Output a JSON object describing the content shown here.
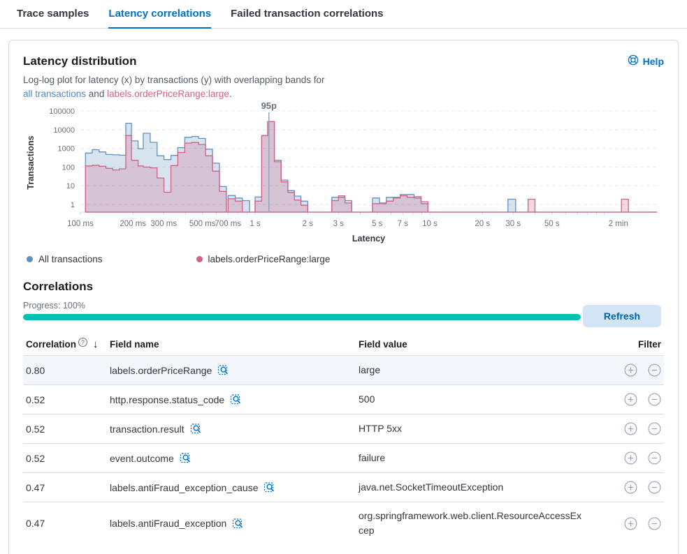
{
  "colors": {
    "accent_blue": "#0071c2",
    "series_all": "#6092C0",
    "series_large": "#D36086",
    "progress_teal": "#00BFB3",
    "border": "#d3dae6",
    "row_highlight": "#f3f6fb",
    "muted_text": "#69707d"
  },
  "tabs": [
    {
      "label": "Trace samples",
      "active": false
    },
    {
      "label": "Latency correlations",
      "active": true
    },
    {
      "label": "Failed transaction correlations",
      "active": false
    }
  ],
  "latency_distribution": {
    "title": "Latency distribution",
    "help_label": "Help",
    "description": "Log-log plot for latency (x) by transactions (y) with overlapping bands for",
    "link_all_transactions": "all transactions",
    "description_and": " and ",
    "link_field": "labels.orderPriceRange:large",
    "description_period": "."
  },
  "chart_data": {
    "type": "area",
    "subtype": "log-log overlapping band histogram",
    "title": "Latency distribution",
    "xlabel": "Latency",
    "ylabel": "Transactions",
    "x_scale": "log",
    "y_scale": "log",
    "x_ticks": [
      "100 ms",
      "200 ms",
      "300 ms",
      "500 ms",
      "700 ms",
      "1 s",
      "2 s",
      "3 s",
      "5 s",
      "7 s",
      "10 s",
      "20 s",
      "30 s",
      "50 s",
      "2 min"
    ],
    "x_tick_ms": [
      100,
      200,
      300,
      500,
      700,
      1000,
      2000,
      3000,
      5000,
      7000,
      10000,
      20000,
      30000,
      50000,
      120000
    ],
    "y_ticks": [
      "1",
      "10",
      "100",
      "1000",
      "10000",
      "100000"
    ],
    "y_tick_values": [
      1,
      10,
      100,
      1000,
      10000,
      100000
    ],
    "annotation": {
      "label": "95p",
      "at_ms": 1200
    },
    "legend_position": "bottom",
    "series": [
      {
        "name": "All transactions",
        "color": "#6092C0",
        "bin_value_index": 2
      },
      {
        "name": "labels.orderPriceRange:large",
        "color": "#D36086",
        "bin_value_index": 3
      }
    ],
    "bins_ms_and_counts": [
      [
        107,
        117,
        560,
        115
      ],
      [
        117,
        128,
        850,
        125
      ],
      [
        128,
        140,
        640,
        110
      ],
      [
        140,
        153,
        470,
        85
      ],
      [
        153,
        167,
        450,
        70
      ],
      [
        167,
        182,
        430,
        80
      ],
      [
        182,
        196,
        22000,
        4800
      ],
      [
        196,
        214,
        2500,
        230
      ],
      [
        214,
        229,
        950,
        115
      ],
      [
        229,
        251,
        6400,
        100
      ],
      [
        251,
        275,
        2100,
        90
      ],
      [
        275,
        301,
        400,
        26
      ],
      [
        301,
        330,
        250,
        4.5
      ],
      [
        330,
        361,
        420,
        120
      ],
      [
        361,
        396,
        1100,
        600
      ],
      [
        396,
        434,
        3900,
        1900
      ],
      [
        434,
        475,
        4300,
        2050
      ],
      [
        475,
        520,
        3400,
        1600
      ],
      [
        520,
        570,
        900,
        400
      ],
      [
        570,
        625,
        160,
        60
      ],
      [
        625,
        685,
        9,
        5
      ],
      [
        700,
        770,
        3,
        2
      ],
      [
        770,
        845,
        2.2,
        1.5
      ],
      [
        845,
        930,
        1.6,
        0
      ],
      [
        1000,
        1090,
        2.5,
        1.5
      ],
      [
        1090,
        1180,
        4800,
        4800
      ],
      [
        1180,
        1290,
        27000,
        27000
      ],
      [
        1290,
        1410,
        230,
        190
      ],
      [
        1410,
        1540,
        20,
        16
      ],
      [
        1540,
        1680,
        5.5,
        4.4
      ],
      [
        1680,
        1830,
        2.8,
        1.7
      ],
      [
        1830,
        2000,
        1.5,
        0.9
      ],
      [
        2750,
        3000,
        2.4,
        1.6
      ],
      [
        3000,
        3270,
        2.4,
        2.9
      ],
      [
        3270,
        3570,
        1.2,
        1.6
      ],
      [
        4700,
        5150,
        2.2,
        1.1
      ],
      [
        5150,
        5640,
        1.2,
        1.1
      ],
      [
        5640,
        6180,
        2.4,
        1.5
      ],
      [
        6180,
        6770,
        2.4,
        2.2
      ],
      [
        6770,
        7420,
        3.4,
        2.9
      ],
      [
        7420,
        8130,
        3.4,
        2.4
      ],
      [
        8130,
        8910,
        2.2,
        2.6
      ],
      [
        8910,
        9760,
        1.1,
        1.4
      ],
      [
        28000,
        31000,
        1.9,
        0
      ],
      [
        36500,
        40000,
        0,
        1.9
      ],
      [
        125000,
        137000,
        0,
        1.9
      ]
    ]
  },
  "correlations": {
    "title": "Correlations",
    "progress_label": "Progress: 100%",
    "progress_percent": 100,
    "refresh_label": "Refresh",
    "columns": [
      "Correlation",
      "Field name",
      "Field value",
      "Filter"
    ],
    "rows": [
      {
        "correlation": "0.80",
        "field_name": "labels.orderPriceRange",
        "field_value": "large",
        "highlighted": true
      },
      {
        "correlation": "0.52",
        "field_name": "http.response.status_code",
        "field_value": "500",
        "highlighted": false
      },
      {
        "correlation": "0.52",
        "field_name": "transaction.result",
        "field_value": "HTTP 5xx",
        "highlighted": false
      },
      {
        "correlation": "0.52",
        "field_name": "event.outcome",
        "field_value": "failure",
        "highlighted": false
      },
      {
        "correlation": "0.47",
        "field_name": "labels.antiFraud_exception_cause",
        "field_value": "java.net.SocketTimeoutException",
        "highlighted": false
      },
      {
        "correlation": "0.47",
        "field_name": "labels.antiFraud_exception",
        "field_value": "org.springframework.web.client.ResourceAccessExcep",
        "highlighted": false
      }
    ]
  }
}
